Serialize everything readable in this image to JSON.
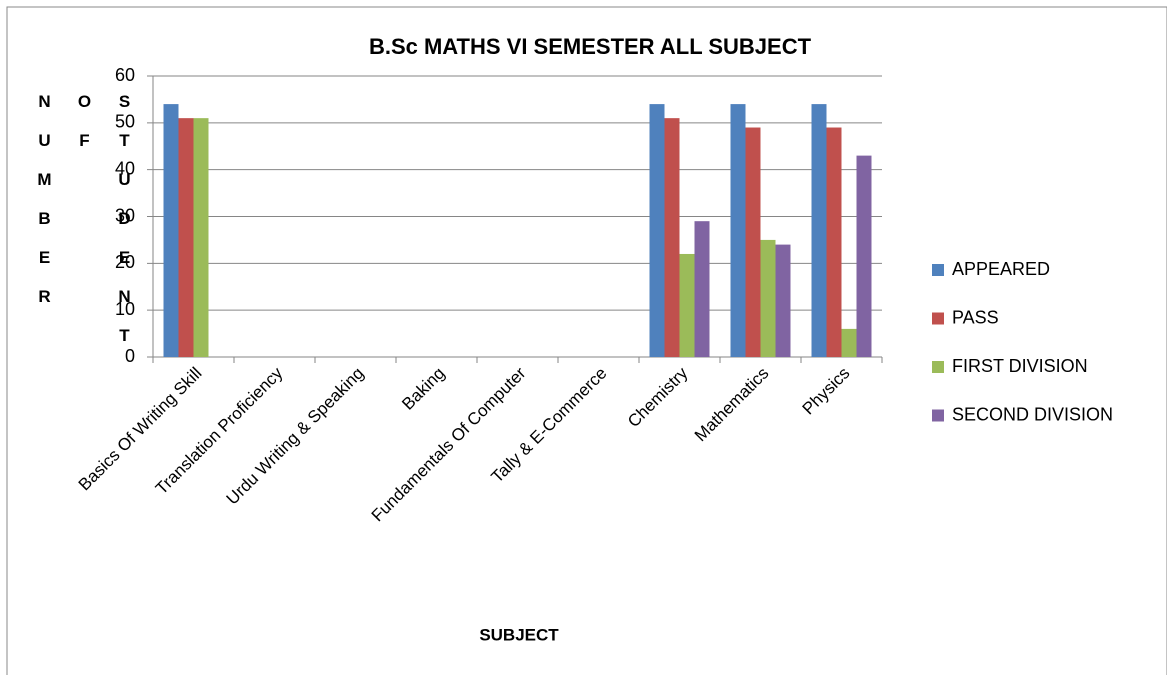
{
  "chart_data": {
    "type": "bar",
    "title": "B.Sc MATHS VI SEMESTER ALL SUBJECT",
    "x_label": "SUBJECT",
    "y_label": "NUMBER OF STUDENT",
    "categories": [
      "Basics Of Writing Skill",
      "Translation Proficiency",
      "Urdu Writing & Speaking",
      "Baking",
      "Fundamentals Of Computer",
      "Tally & E-Commerce",
      "Chemistry",
      "Mathematics",
      "Physics"
    ],
    "series": [
      {
        "name": "APPEARED",
        "color": "#4f81bd",
        "values": [
          54,
          null,
          null,
          null,
          null,
          null,
          54,
          54,
          54
        ]
      },
      {
        "name": "PASS",
        "color": "#c0504d",
        "values": [
          51,
          null,
          null,
          null,
          null,
          null,
          51,
          49,
          49
        ]
      },
      {
        "name": "FIRST DIVISION",
        "color": "#9bbb59",
        "values": [
          51,
          null,
          null,
          null,
          null,
          null,
          22,
          25,
          6
        ]
      },
      {
        "name": "SECOND DIVISION",
        "color": "#8064a2",
        "values": [
          null,
          null,
          null,
          null,
          null,
          null,
          29,
          24,
          43
        ]
      }
    ],
    "ylim": [
      0,
      60
    ],
    "yticks": [
      0,
      10,
      20,
      30,
      40,
      50,
      60
    ],
    "grid": true,
    "legend": "right"
  }
}
